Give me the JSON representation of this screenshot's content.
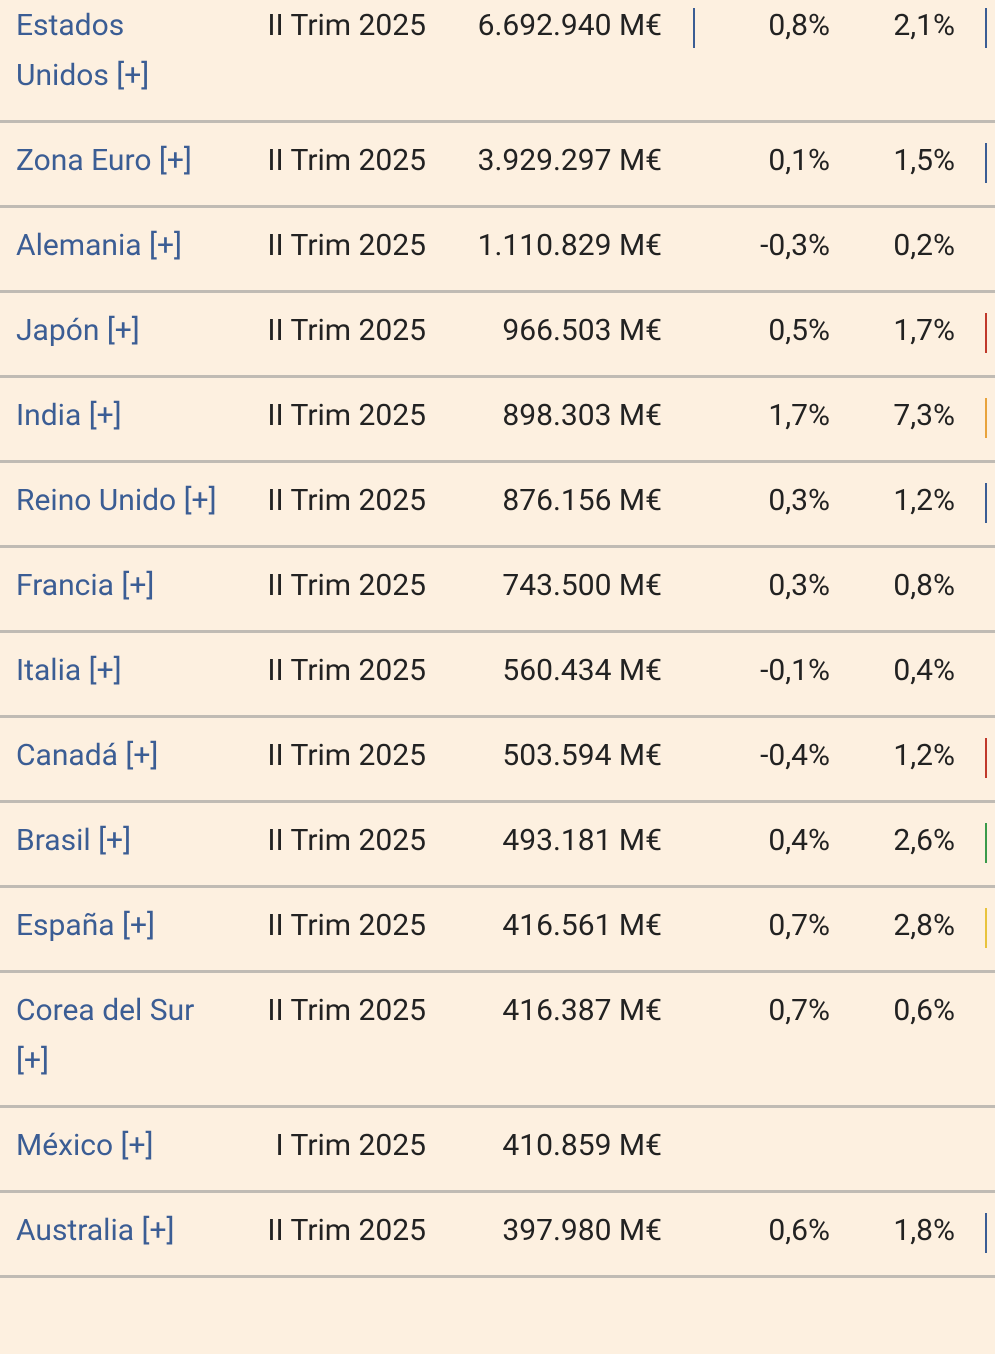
{
  "table": {
    "rows": [
      {
        "name": "Estados Unidos [+]",
        "period": "II Trim 2025",
        "gdp": "6.692.940 M€",
        "qoq": "0,8%",
        "yoy": "2,1%"
      },
      {
        "name": "Zona Euro [+]",
        "period": "II Trim 2025",
        "gdp": "3.929.297 M€",
        "qoq": "0,1%",
        "yoy": "1,5%"
      },
      {
        "name": "Alemania [+]",
        "period": "II Trim 2025",
        "gdp": "1.110.829 M€",
        "qoq": "-0,3%",
        "yoy": "0,2%"
      },
      {
        "name": "Japón [+]",
        "period": "II Trim 2025",
        "gdp": "966.503 M€",
        "qoq": "0,5%",
        "yoy": "1,7%"
      },
      {
        "name": "India [+]",
        "period": "II Trim 2025",
        "gdp": "898.303 M€",
        "qoq": "1,7%",
        "yoy": "7,3%"
      },
      {
        "name": "Reino Unido [+]",
        "period": "II Trim 2025",
        "gdp": "876.156 M€",
        "qoq": "0,3%",
        "yoy": "1,2%"
      },
      {
        "name": "Francia [+]",
        "period": "II Trim 2025",
        "gdp": "743.500 M€",
        "qoq": "0,3%",
        "yoy": "0,8%"
      },
      {
        "name": "Italia [+]",
        "period": "II Trim 2025",
        "gdp": "560.434 M€",
        "qoq": "-0,1%",
        "yoy": "0,4%"
      },
      {
        "name": "Canadá [+]",
        "period": "II Trim 2025",
        "gdp": "503.594 M€",
        "qoq": "-0,4%",
        "yoy": "1,2%"
      },
      {
        "name": "Brasil [+]",
        "period": "II Trim 2025",
        "gdp": "493.181 M€",
        "qoq": "0,4%",
        "yoy": "2,6%"
      },
      {
        "name": "España [+]",
        "period": "II Trim 2025",
        "gdp": "416.561 M€",
        "qoq": "0,7%",
        "yoy": "2,8%"
      },
      {
        "name": "Corea del Sur [+]",
        "period": "II Trim 2025",
        "gdp": "416.387 M€",
        "qoq": "0,7%",
        "yoy": "0,6%"
      },
      {
        "name": "México [+]",
        "period": "I Trim 2025",
        "gdp": "410.859 M€"
      },
      {
        "name": "Australia [+]",
        "period": "II Trim 2025",
        "gdp": "397.980 M€",
        "qoq": "0,6%",
        "yoy": "1,8%"
      }
    ]
  }
}
